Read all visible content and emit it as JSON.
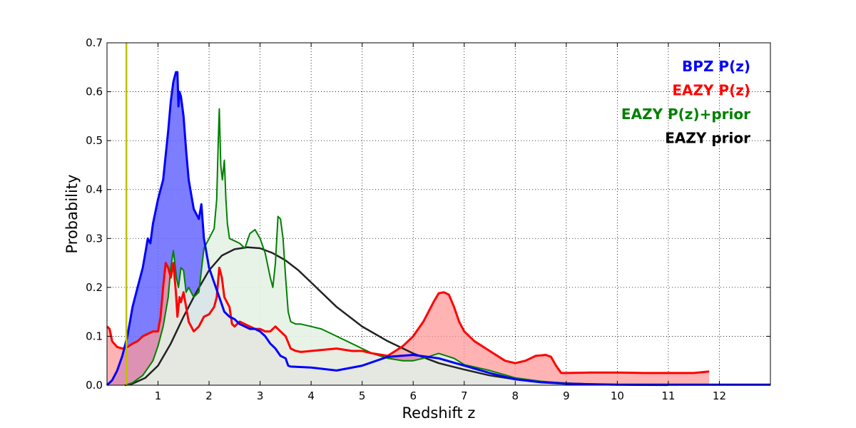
{
  "chart_data": {
    "type": "line",
    "title": "",
    "xlabel": "Redshift z",
    "ylabel": "Probability",
    "xlim": [
      0,
      13
    ],
    "ylim": [
      0,
      0.7
    ],
    "x_ticks": [
      1,
      2,
      3,
      4,
      5,
      6,
      7,
      8,
      9,
      10,
      11,
      12
    ],
    "x_tick_labels": [
      "1",
      "2",
      "3",
      "4",
      "5",
      "6",
      "7",
      "8",
      "9",
      "10",
      "11",
      "12"
    ],
    "y_ticks": [
      0,
      0.1,
      0.2,
      0.3,
      0.4,
      0.5,
      0.6,
      0.7
    ],
    "y_tick_labels": [
      "0.0",
      "0.1",
      "0.2",
      "0.3",
      "0.4",
      "0.5",
      "0.6",
      "0.7"
    ],
    "grid": true,
    "legend_placement": "top-right",
    "reference_line": {
      "x": 0.38,
      "color": "#bfbf00"
    },
    "series": [
      {
        "name": "BPZ P(z)",
        "color": "#0000ff",
        "fill": "#6666ff",
        "fill_opacity": 0.85,
        "x": [
          0,
          0.1,
          0.2,
          0.3,
          0.4,
          0.5,
          0.6,
          0.7,
          0.75,
          0.8,
          0.85,
          0.9,
          1.0,
          1.1,
          1.2,
          1.25,
          1.3,
          1.35,
          1.38,
          1.4,
          1.42,
          1.45,
          1.5,
          1.55,
          1.6,
          1.7,
          1.8,
          1.85,
          1.9,
          2.0,
          2.1,
          2.2,
          2.3,
          2.4,
          2.5,
          2.6,
          2.7,
          2.8,
          2.9,
          3.0,
          3.1,
          3.2,
          3.3,
          3.4,
          3.5,
          3.55,
          3.6,
          4.0,
          4.5,
          5.0,
          5.5,
          6.0,
          6.5,
          7.0,
          7.5,
          8.0,
          8.5,
          9.0,
          9.5,
          10.0,
          10.5,
          11.0,
          11.5,
          12.0,
          12.5,
          13.0
        ],
        "y": [
          0,
          0.01,
          0.03,
          0.06,
          0.1,
          0.16,
          0.2,
          0.24,
          0.27,
          0.3,
          0.29,
          0.33,
          0.38,
          0.42,
          0.52,
          0.58,
          0.62,
          0.64,
          0.64,
          0.57,
          0.6,
          0.59,
          0.55,
          0.48,
          0.42,
          0.36,
          0.34,
          0.37,
          0.3,
          0.24,
          0.21,
          0.18,
          0.15,
          0.14,
          0.135,
          0.125,
          0.12,
          0.115,
          0.115,
          0.11,
          0.1,
          0.085,
          0.075,
          0.06,
          0.055,
          0.04,
          0.038,
          0.036,
          0.03,
          0.04,
          0.058,
          0.062,
          0.055,
          0.04,
          0.025,
          0.012,
          0.006,
          0.003,
          0.002,
          0.001,
          0.001,
          0.001,
          0.001,
          0.001,
          0.001,
          0.001
        ]
      },
      {
        "name": "EAZY P(z)",
        "color": "#ff0000",
        "fill": "#ff9999",
        "fill_opacity": 0.75,
        "x": [
          0,
          0.05,
          0.1,
          0.2,
          0.3,
          0.4,
          0.5,
          0.6,
          0.7,
          0.8,
          0.9,
          1.0,
          1.05,
          1.1,
          1.15,
          1.2,
          1.25,
          1.3,
          1.35,
          1.38,
          1.42,
          1.45,
          1.5,
          1.6,
          1.7,
          1.8,
          1.9,
          2.0,
          2.1,
          2.15,
          2.2,
          2.25,
          2.3,
          2.35,
          2.4,
          2.45,
          2.5,
          2.6,
          2.7,
          2.8,
          2.9,
          3.0,
          3.1,
          3.2,
          3.3,
          3.4,
          3.5,
          3.6,
          3.7,
          3.8,
          4.0,
          4.2,
          4.5,
          4.8,
          5.0,
          5.2,
          5.5,
          5.8,
          6.0,
          6.2,
          6.4,
          6.5,
          6.6,
          6.7,
          6.8,
          6.9,
          7.0,
          7.2,
          7.5,
          7.8,
          8.0,
          8.2,
          8.4,
          8.6,
          8.7,
          8.8,
          8.9,
          9.0,
          9.5,
          10.0,
          10.5,
          11.0,
          11.5,
          11.8
        ],
        "y": [
          0.12,
          0.115,
          0.09,
          0.078,
          0.075,
          0.078,
          0.085,
          0.09,
          0.1,
          0.105,
          0.11,
          0.11,
          0.14,
          0.2,
          0.25,
          0.24,
          0.22,
          0.25,
          0.19,
          0.14,
          0.18,
          0.17,
          0.19,
          0.13,
          0.11,
          0.12,
          0.14,
          0.145,
          0.16,
          0.18,
          0.24,
          0.22,
          0.18,
          0.17,
          0.16,
          0.125,
          0.12,
          0.13,
          0.125,
          0.12,
          0.115,
          0.115,
          0.11,
          0.11,
          0.12,
          0.11,
          0.1,
          0.075,
          0.07,
          0.068,
          0.07,
          0.072,
          0.075,
          0.07,
          0.07,
          0.065,
          0.06,
          0.08,
          0.1,
          0.13,
          0.17,
          0.188,
          0.19,
          0.185,
          0.16,
          0.13,
          0.11,
          0.09,
          0.07,
          0.05,
          0.045,
          0.05,
          0.06,
          0.062,
          0.058,
          0.04,
          0.025,
          0.025,
          0.026,
          0.026,
          0.025,
          0.025,
          0.025,
          0.028
        ]
      },
      {
        "name": "EAZY P(z)+prior",
        "color": "#008000",
        "fill": "#e6f2e6",
        "fill_opacity": 0.9,
        "x": [
          0.35,
          0.5,
          0.7,
          0.9,
          1.0,
          1.1,
          1.2,
          1.25,
          1.3,
          1.33,
          1.36,
          1.4,
          1.45,
          1.5,
          1.55,
          1.6,
          1.7,
          1.8,
          1.9,
          2.0,
          2.1,
          2.15,
          2.18,
          2.2,
          2.23,
          2.26,
          2.3,
          2.33,
          2.36,
          2.4,
          2.5,
          2.6,
          2.7,
          2.8,
          2.9,
          3.0,
          3.1,
          3.2,
          3.25,
          3.3,
          3.35,
          3.4,
          3.45,
          3.5,
          3.55,
          3.6,
          3.7,
          3.8,
          4.0,
          4.2,
          4.5,
          4.8,
          5.0,
          5.2,
          5.5,
          5.8,
          6.0,
          6.2,
          6.5,
          6.8,
          7.0,
          7.5,
          8.0,
          8.5,
          9.0,
          9.5,
          10.0,
          10.5,
          11.0
        ],
        "y": [
          0.0,
          0.005,
          0.02,
          0.05,
          0.08,
          0.12,
          0.18,
          0.24,
          0.275,
          0.25,
          0.22,
          0.2,
          0.24,
          0.235,
          0.19,
          0.2,
          0.18,
          0.19,
          0.28,
          0.3,
          0.32,
          0.38,
          0.5,
          0.565,
          0.45,
          0.42,
          0.46,
          0.38,
          0.33,
          0.3,
          0.295,
          0.29,
          0.28,
          0.31,
          0.318,
          0.3,
          0.27,
          0.22,
          0.2,
          0.25,
          0.345,
          0.34,
          0.3,
          0.22,
          0.15,
          0.13,
          0.125,
          0.125,
          0.12,
          0.115,
          0.1,
          0.085,
          0.075,
          0.065,
          0.055,
          0.05,
          0.05,
          0.055,
          0.065,
          0.055,
          0.042,
          0.03,
          0.015,
          0.008,
          0.004,
          0.002,
          0.001,
          0.0005,
          0.0002
        ]
      },
      {
        "name": "EAZY prior",
        "color": "#222222",
        "fill": "none",
        "fill_opacity": 0,
        "x": [
          0.35,
          0.5,
          0.75,
          1.0,
          1.25,
          1.5,
          1.75,
          2.0,
          2.25,
          2.5,
          2.75,
          3.0,
          3.25,
          3.5,
          3.75,
          4.0,
          4.5,
          5.0,
          5.5,
          6.0,
          6.5,
          7.0,
          7.5,
          8.0,
          8.5,
          9.0,
          9.5,
          10.0,
          10.5,
          11.0
        ],
        "y": [
          0.0,
          0.003,
          0.015,
          0.04,
          0.085,
          0.14,
          0.19,
          0.235,
          0.265,
          0.278,
          0.282,
          0.28,
          0.27,
          0.255,
          0.235,
          0.21,
          0.16,
          0.12,
          0.09,
          0.065,
          0.045,
          0.032,
          0.02,
          0.012,
          0.007,
          0.004,
          0.002,
          0.001,
          0.0005,
          0.0002
        ]
      }
    ]
  }
}
